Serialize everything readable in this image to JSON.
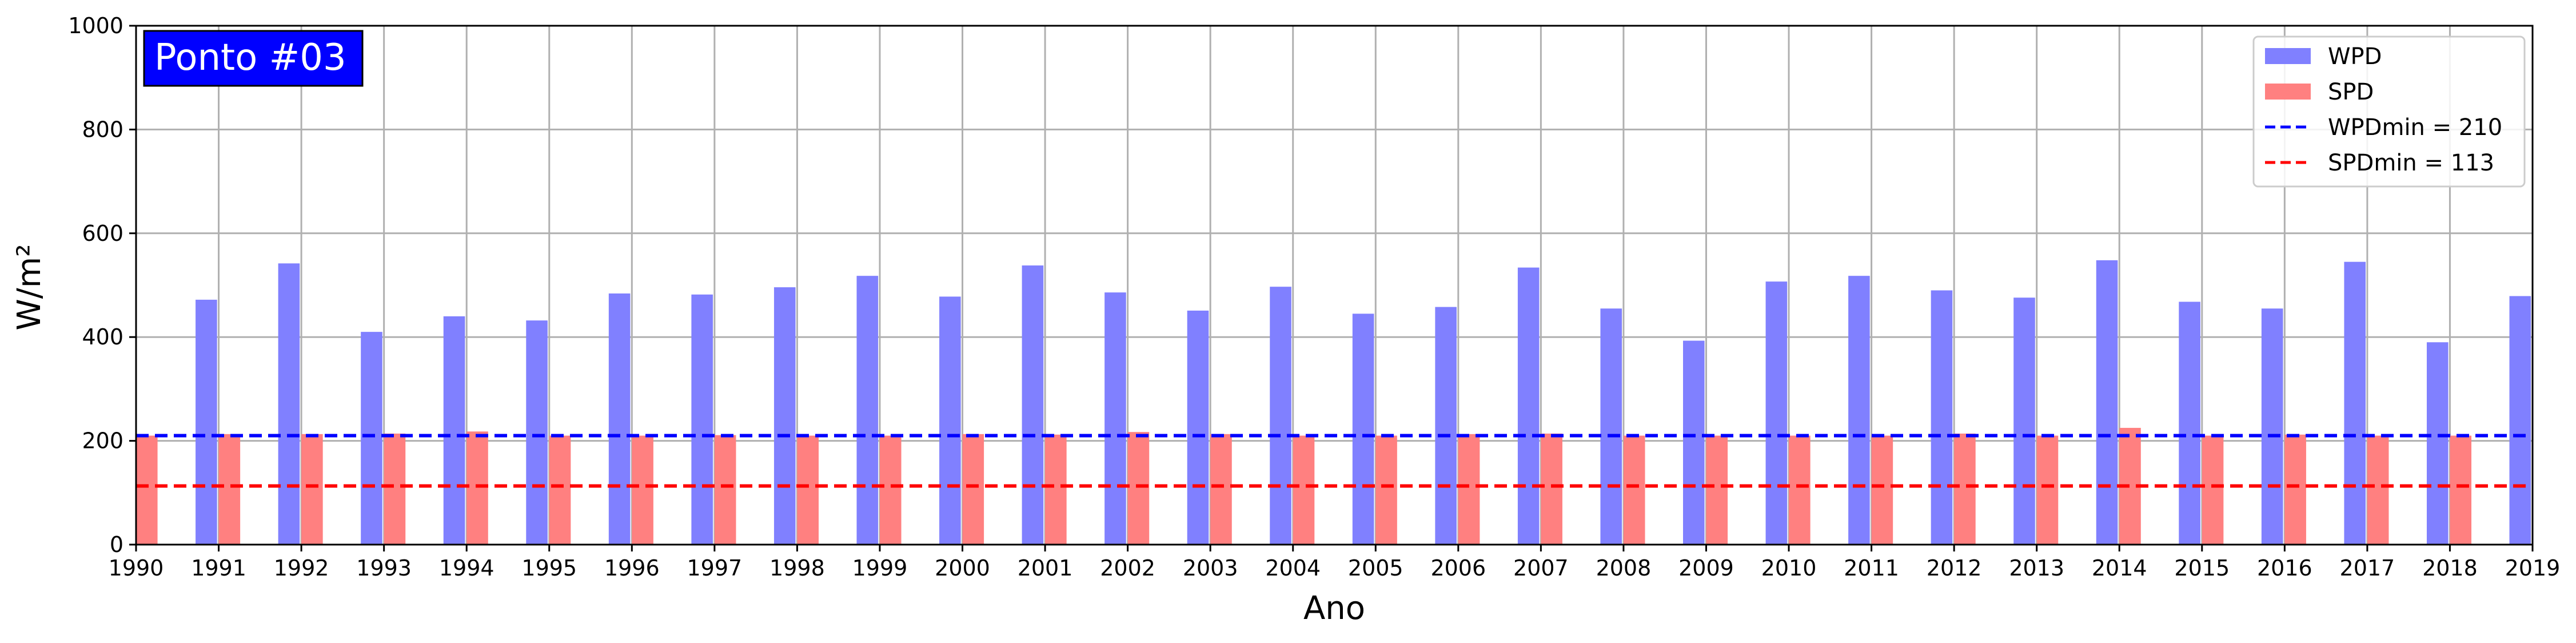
{
  "badge": {
    "text": "Ponto #03",
    "background_color": "#0000ff",
    "text_color": "#ffffff"
  },
  "chart_data": {
    "type": "bar",
    "xlabel": "Ano",
    "ylabel": "W/m²",
    "xlim": [
      1990,
      2019
    ],
    "ylim": [
      0,
      1000
    ],
    "x_ticks": [
      1990,
      1991,
      1992,
      1993,
      1994,
      1995,
      1996,
      1997,
      1998,
      1999,
      2000,
      2001,
      2002,
      2003,
      2004,
      2005,
      2006,
      2007,
      2008,
      2009,
      2010,
      2011,
      2012,
      2013,
      2014,
      2015,
      2016,
      2017,
      2018,
      2019
    ],
    "y_ticks": [
      0,
      200,
      400,
      600,
      800,
      1000
    ],
    "grid": true,
    "legend_position": "top-right",
    "series": [
      {
        "name": "WPD",
        "color": "#8080ff",
        "x": [
          1990,
          1991,
          1992,
          1993,
          1994,
          1995,
          1996,
          1997,
          1998,
          1999,
          2000,
          2001,
          2002,
          2003,
          2004,
          2005,
          2006,
          2007,
          2008,
          2009,
          2010,
          2011,
          2012,
          2013,
          2014,
          2015,
          2016,
          2017,
          2018,
          2019
        ],
        "values": [
          0,
          472,
          542,
          410,
          440,
          432,
          484,
          482,
          496,
          518,
          478,
          538,
          486,
          451,
          497,
          445,
          458,
          534,
          455,
          393,
          507,
          518,
          490,
          476,
          548,
          468,
          455,
          545,
          390,
          479
        ]
      },
      {
        "name": "SPD",
        "color": "#ff8080",
        "x": [
          1990,
          1991,
          1992,
          1993,
          1994,
          1995,
          1996,
          1997,
          1998,
          1999,
          2000,
          2001,
          2002,
          2003,
          2004,
          2005,
          2006,
          2007,
          2008,
          2009,
          2010,
          2011,
          2012,
          2013,
          2014,
          2015,
          2016,
          2017,
          2018,
          2019
        ],
        "values": [
          210,
          213,
          213,
          214,
          218,
          210,
          210,
          211,
          210,
          210,
          213,
          212,
          217,
          213,
          210,
          210,
          213,
          214,
          210,
          210,
          210,
          210,
          214,
          210,
          225,
          210,
          212,
          210,
          210,
          0
        ]
      }
    ],
    "reference_lines": [
      {
        "name": "WPDmin = 210",
        "value": 210,
        "color": "#0000ff",
        "style": "dashed"
      },
      {
        "name": "SPDmin = 113",
        "value": 113,
        "color": "#ff0000",
        "style": "dashed"
      }
    ],
    "grid_color": "#b0b0b0"
  }
}
